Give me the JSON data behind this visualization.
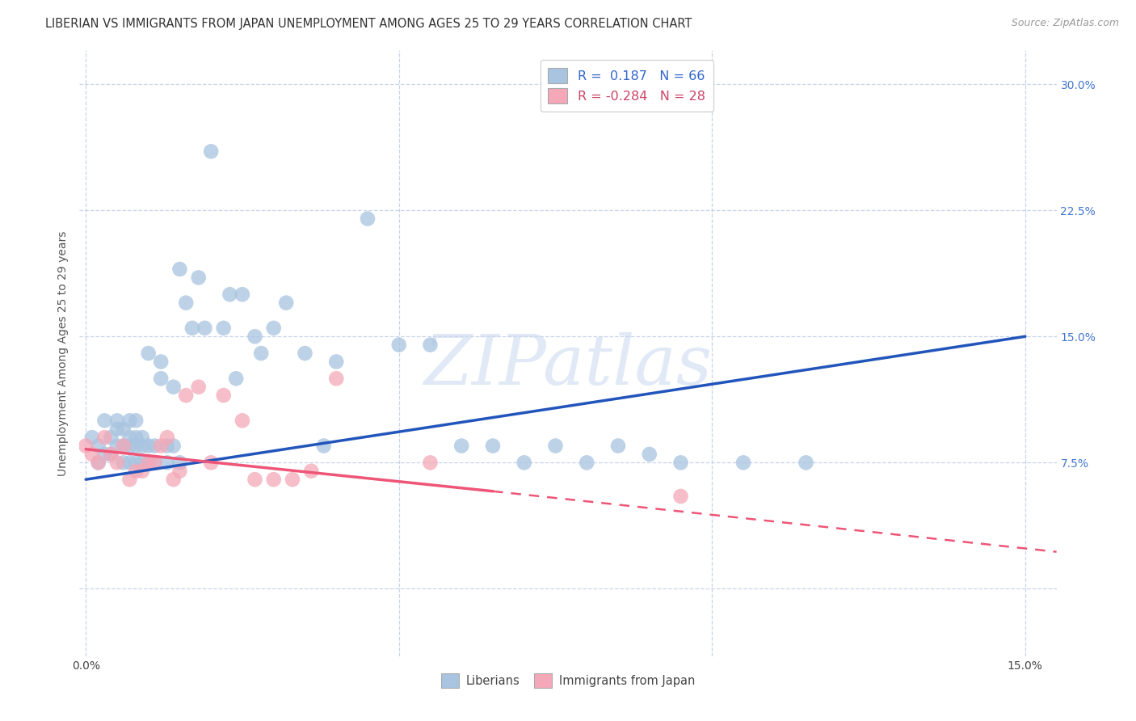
{
  "title": "LIBERIAN VS IMMIGRANTS FROM JAPAN UNEMPLOYMENT AMONG AGES 25 TO 29 YEARS CORRELATION CHART",
  "source": "Source: ZipAtlas.com",
  "ylabel": "Unemployment Among Ages 25 to 29 years",
  "xlim": [
    -0.001,
    0.155
  ],
  "ylim": [
    -0.04,
    0.32
  ],
  "xticks": [
    0.0,
    0.05,
    0.1,
    0.15
  ],
  "xtick_labels": [
    "0.0%",
    "",
    "",
    "15.0%"
  ],
  "yticks": [
    0.0,
    0.075,
    0.15,
    0.225,
    0.3
  ],
  "ytick_labels_right": [
    "",
    "7.5%",
    "15.0%",
    "22.5%",
    "30.0%"
  ],
  "liberian_color": "#a8c4e0",
  "japan_color": "#f4a8b8",
  "trendline_liberian_color": "#2255bb",
  "trendline_japan_color": "#ee5577",
  "watermark": "ZIPatlas",
  "legend_R_liberian": "0.187",
  "legend_N_liberian": "66",
  "legend_R_japan": "-0.284",
  "legend_N_japan": "28",
  "trendline_lib_x0": 0.0,
  "trendline_lib_y0": 0.065,
  "trendline_lib_x1": 0.15,
  "trendline_lib_y1": 0.15,
  "trendline_jap_x0": 0.0,
  "trendline_jap_y0": 0.083,
  "trendline_jap_x1": 0.065,
  "trendline_jap_y1": 0.058,
  "trendline_jap_dash_x0": 0.065,
  "trendline_jap_dash_y0": 0.058,
  "trendline_jap_dash_x1": 0.155,
  "trendline_jap_dash_y1": 0.022,
  "lib_x": [
    0.001,
    0.002,
    0.002,
    0.003,
    0.003,
    0.004,
    0.004,
    0.005,
    0.005,
    0.005,
    0.006,
    0.006,
    0.006,
    0.007,
    0.007,
    0.007,
    0.007,
    0.008,
    0.008,
    0.008,
    0.008,
    0.009,
    0.009,
    0.009,
    0.01,
    0.01,
    0.01,
    0.011,
    0.011,
    0.012,
    0.012,
    0.013,
    0.013,
    0.014,
    0.014,
    0.015,
    0.015,
    0.016,
    0.017,
    0.018,
    0.019,
    0.02,
    0.022,
    0.023,
    0.024,
    0.025,
    0.027,
    0.028,
    0.03,
    0.032,
    0.035,
    0.038,
    0.04,
    0.045,
    0.05,
    0.055,
    0.06,
    0.065,
    0.07,
    0.075,
    0.08,
    0.085,
    0.09,
    0.095,
    0.105,
    0.115
  ],
  "lib_y": [
    0.09,
    0.085,
    0.075,
    0.1,
    0.08,
    0.09,
    0.08,
    0.085,
    0.095,
    0.1,
    0.085,
    0.095,
    0.075,
    0.085,
    0.09,
    0.1,
    0.075,
    0.085,
    0.09,
    0.1,
    0.075,
    0.085,
    0.09,
    0.075,
    0.14,
    0.085,
    0.075,
    0.085,
    0.075,
    0.135,
    0.125,
    0.085,
    0.075,
    0.12,
    0.085,
    0.19,
    0.075,
    0.17,
    0.155,
    0.185,
    0.155,
    0.26,
    0.155,
    0.175,
    0.125,
    0.175,
    0.15,
    0.14,
    0.155,
    0.17,
    0.14,
    0.085,
    0.135,
    0.22,
    0.145,
    0.145,
    0.085,
    0.085,
    0.075,
    0.085,
    0.075,
    0.085,
    0.08,
    0.075,
    0.075,
    0.075
  ],
  "jap_x": [
    0.0,
    0.001,
    0.002,
    0.003,
    0.004,
    0.005,
    0.006,
    0.007,
    0.008,
    0.009,
    0.01,
    0.011,
    0.012,
    0.013,
    0.014,
    0.015,
    0.016,
    0.018,
    0.02,
    0.022,
    0.025,
    0.027,
    0.03,
    0.033,
    0.036,
    0.04,
    0.055,
    0.095
  ],
  "jap_y": [
    0.085,
    0.08,
    0.075,
    0.09,
    0.08,
    0.075,
    0.085,
    0.065,
    0.07,
    0.07,
    0.075,
    0.075,
    0.085,
    0.09,
    0.065,
    0.07,
    0.115,
    0.12,
    0.075,
    0.115,
    0.1,
    0.065,
    0.065,
    0.065,
    0.07,
    0.125,
    0.075,
    0.055
  ],
  "background_color": "#ffffff",
  "grid_color": "#c8d4e8",
  "title_fontsize": 10.5,
  "axis_fontsize": 10,
  "tick_fontsize": 10
}
